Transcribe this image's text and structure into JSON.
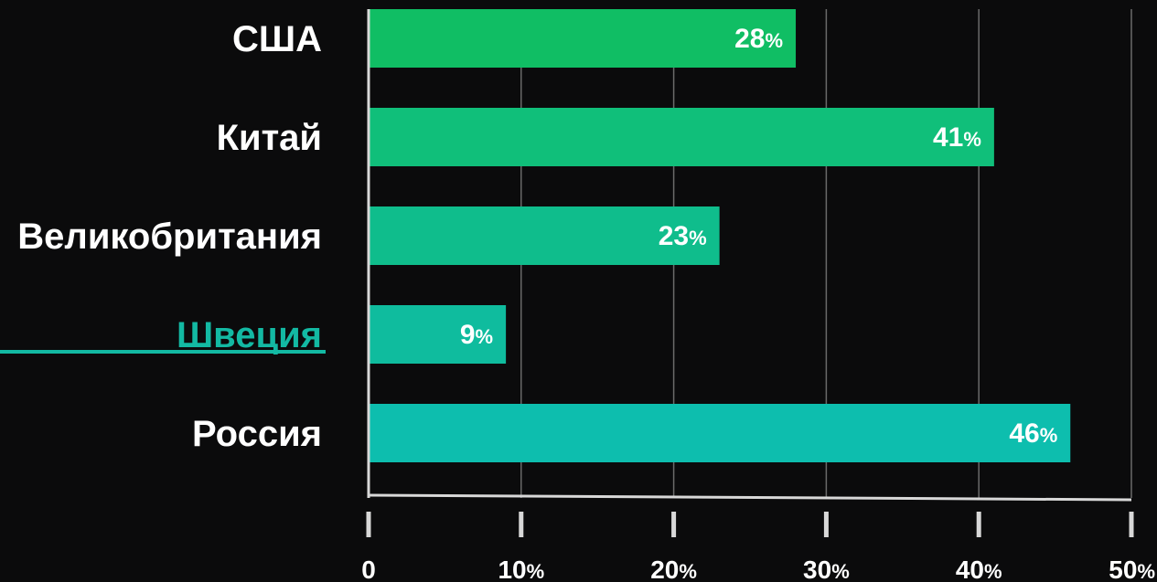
{
  "chart_data": {
    "type": "bar",
    "orientation": "horizontal",
    "categories": [
      "США",
      "Китай",
      "Великобритания",
      "Швеция",
      "Россия"
    ],
    "values": [
      28,
      41,
      23,
      9,
      46
    ],
    "value_labels": [
      "28%",
      "41%",
      "23%",
      "9%",
      "46%"
    ],
    "highlighted_category": "Швеция",
    "x_ticks": [
      "0",
      "10%",
      "20%",
      "30%",
      "40%",
      "50%"
    ],
    "x_tick_values": [
      0,
      10,
      20,
      30,
      40,
      50
    ],
    "xlim": [
      0,
      50
    ],
    "grid": true,
    "title": "",
    "xlabel": "",
    "ylabel": "",
    "colors": {
      "background": "#0b0b0c",
      "bar_gradient": [
        "#10be64",
        "#10bf7a",
        "#0fbd8c",
        "#0fbc9e",
        "#0dbeae"
      ],
      "highlight": "#13b9a3",
      "text": "#ffffff",
      "grid": "#6a6a6a",
      "axis": "#d8d8d8"
    }
  }
}
